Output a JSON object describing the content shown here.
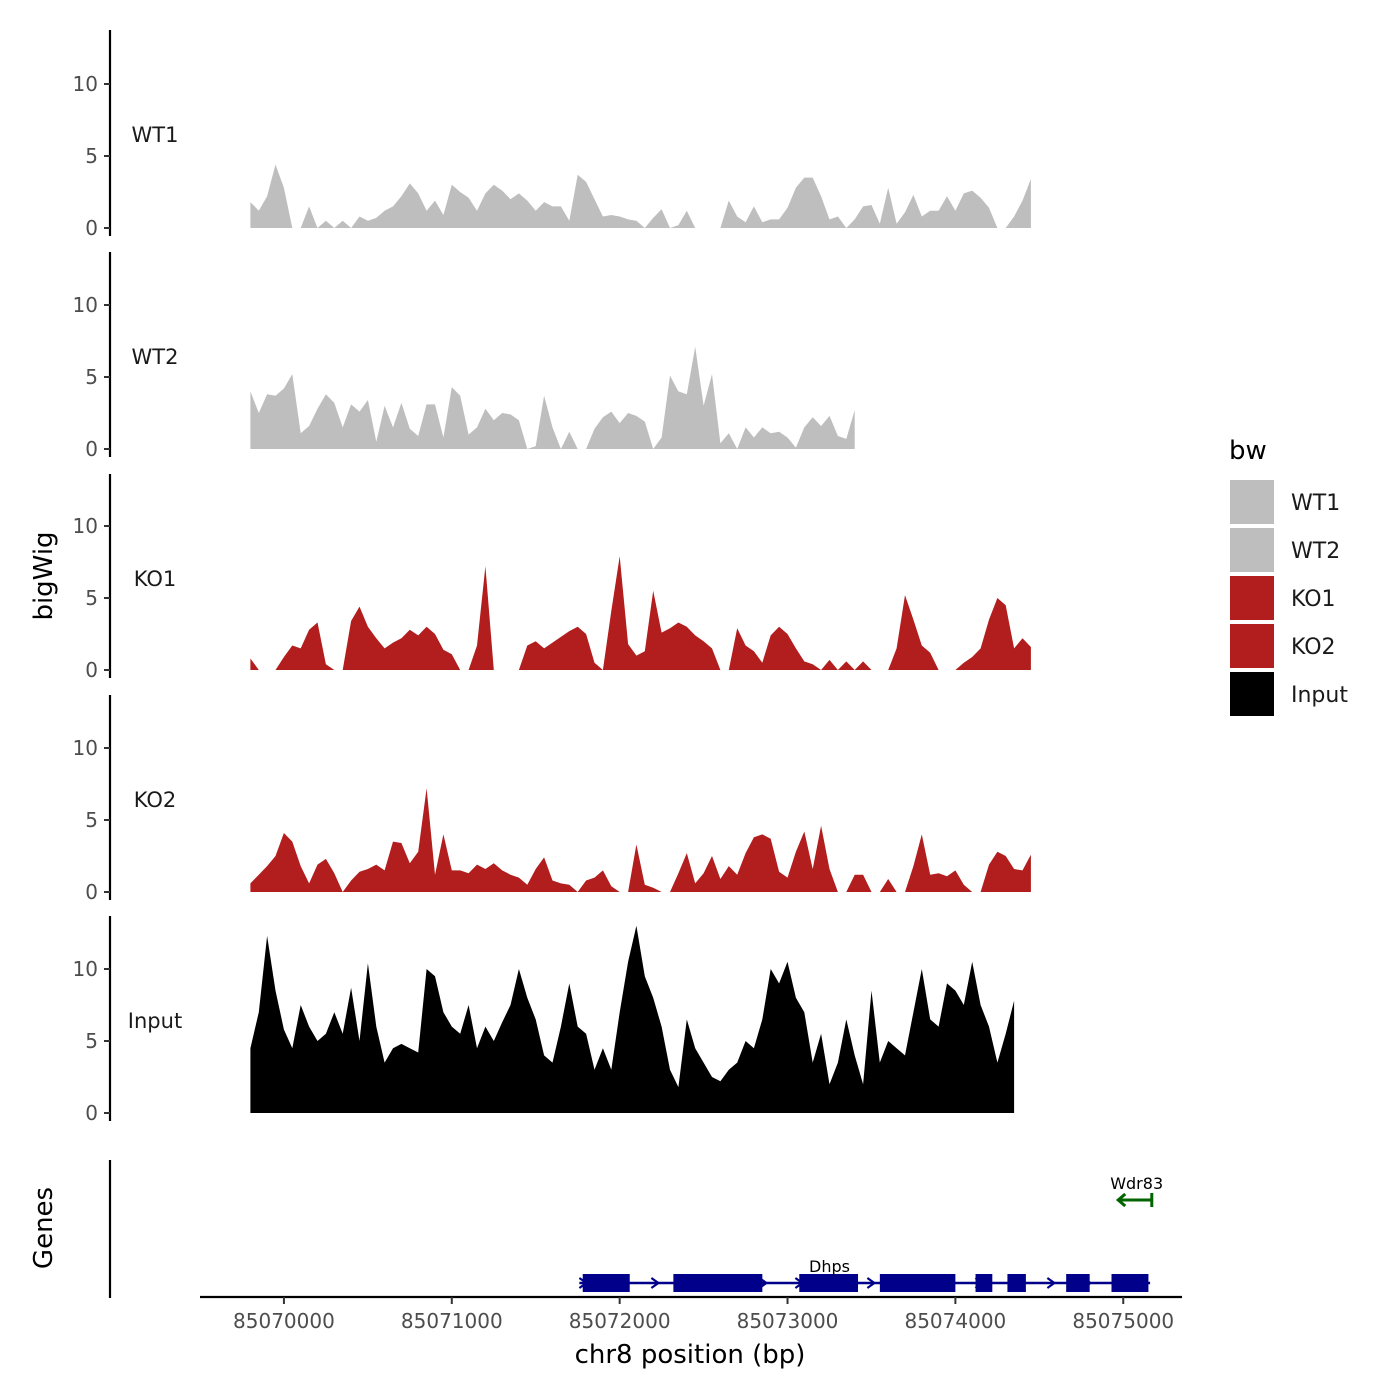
{
  "chart_data": {
    "type": "area",
    "ylabel_tracks": "bigWig",
    "ylabel_genes": "Genes",
    "xlabel": "chr8 position (bp)",
    "xlim": [
      85069500,
      85075350
    ],
    "ylim": [
      0,
      13.5
    ],
    "x_ticks": [
      85070000,
      85071000,
      85072000,
      85073000,
      85074000,
      85075000
    ],
    "x_tick_labels": [
      "85070000",
      "85071000",
      "85072000",
      "85073000",
      "85074000",
      "85075000"
    ],
    "y_ticks": [
      0,
      5,
      10
    ],
    "y_tick_labels": [
      "0",
      "5",
      "10"
    ],
    "legend": {
      "title": "bw",
      "entries": [
        {
          "name": "WT1",
          "color": "#bebebe"
        },
        {
          "name": "WT2",
          "color": "#bebebe"
        },
        {
          "name": "KO1",
          "color": "#b21d1d"
        },
        {
          "name": "KO2",
          "color": "#b21d1d"
        },
        {
          "name": "Input",
          "color": "#000000"
        }
      ]
    },
    "series": [
      {
        "name": "WT1",
        "color": "#bebebe",
        "start": 85069800,
        "step": 50,
        "values": [
          1.8,
          1.2,
          2.2,
          4.4,
          2.8,
          0,
          0,
          1.5,
          0,
          0.5,
          0,
          0.5,
          0,
          0.8,
          0.5,
          0.7,
          1.2,
          1.5,
          2.2,
          3.1,
          2.4,
          1.2,
          1.9,
          0.9,
          3.0,
          2.5,
          2.1,
          1.2,
          2.4,
          3.0,
          2.6,
          2.0,
          2.4,
          1.9,
          1.2,
          1.8,
          1.5,
          1.5,
          0.5,
          3.7,
          3.2,
          2.0,
          0.8,
          0.9,
          0.8,
          0.6,
          0.5,
          0,
          0.7,
          1.3,
          0,
          0.2,
          1.2,
          0,
          0,
          0,
          0,
          1.9,
          0.8,
          0.4,
          1.5,
          0.4,
          0.6,
          0.6,
          1.4,
          2.8,
          3.5,
          3.5,
          2.2,
          0.6,
          0.8,
          0,
          0.6,
          1.5,
          1.6,
          0.3,
          2.8,
          0.3,
          1.1,
          2.3,
          0.8,
          1.2,
          1.2,
          2.2,
          1.2,
          2.4,
          2.6,
          2.1,
          1.4,
          0,
          0,
          0.8,
          1.9,
          3.4
        ]
      },
      {
        "name": "WT2",
        "color": "#bebebe",
        "start": 85069800,
        "step": 50,
        "values": [
          4.0,
          2.5,
          3.8,
          3.7,
          4.2,
          5.2,
          1.1,
          1.6,
          2.8,
          3.8,
          3.2,
          1.5,
          3.1,
          2.6,
          3.4,
          0.5,
          3.0,
          1.5,
          3.2,
          1.4,
          0.9,
          3.1,
          3.1,
          0.8,
          4.3,
          3.7,
          1.0,
          1.5,
          2.8,
          2.0,
          2.5,
          2.4,
          2.0,
          0,
          0.2,
          3.7,
          1.5,
          0,
          1.2,
          0,
          0,
          1.4,
          2.2,
          2.6,
          1.8,
          2.5,
          2.3,
          1.9,
          0,
          0.8,
          5.1,
          4.0,
          3.8,
          7.1,
          3.0,
          5.2,
          0.4,
          1.1,
          0,
          1.5,
          0.8,
          1.5,
          1.1,
          1.2,
          0.8,
          0.1,
          1.5,
          2.2,
          1.6,
          2.3,
          0.9,
          0.7,
          2.7
        ]
      },
      {
        "name": "KO1",
        "color": "#b21d1d",
        "start": 85069800,
        "step": 50,
        "values": [
          0.8,
          0,
          0,
          0,
          0.9,
          1.7,
          1.5,
          2.8,
          3.3,
          0.4,
          0,
          0,
          3.4,
          4.4,
          3.0,
          2.2,
          1.5,
          1.9,
          2.2,
          2.8,
          2.4,
          3.0,
          2.5,
          1.4,
          1.1,
          0,
          0,
          1.7,
          7.2,
          0,
          0,
          0,
          0,
          1.7,
          2.0,
          1.5,
          1.9,
          2.3,
          2.7,
          3.0,
          2.5,
          0.5,
          0,
          4.1,
          7.9,
          1.8,
          1.0,
          1.3,
          5.5,
          2.6,
          2.9,
          3.3,
          3.0,
          2.4,
          2.0,
          1.5,
          0,
          0,
          2.9,
          1.7,
          1.3,
          0.5,
          2.4,
          3.0,
          2.5,
          1.5,
          0.6,
          0.4,
          0,
          0.7,
          0,
          0.6,
          0,
          0.6,
          0,
          0,
          0,
          1.5,
          5.2,
          3.5,
          1.7,
          1.2,
          0,
          0,
          0,
          0.5,
          0.9,
          1.5,
          3.5,
          5.0,
          4.5,
          1.5,
          2.2,
          1.6
        ]
      },
      {
        "name": "KO2",
        "color": "#b21d1d",
        "start": 85069800,
        "step": 50,
        "values": [
          0.6,
          1.2,
          1.8,
          2.5,
          4.1,
          3.5,
          1.8,
          0.6,
          1.9,
          2.3,
          1.3,
          0,
          0.8,
          1.4,
          1.6,
          1.9,
          1.5,
          3.5,
          3.4,
          2.0,
          2.8,
          7.2,
          1.2,
          4.0,
          1.5,
          1.5,
          1.3,
          1.9,
          1.6,
          2.0,
          1.5,
          1.2,
          1.0,
          0.5,
          1.6,
          2.4,
          0.8,
          0.6,
          0.5,
          0,
          0.8,
          1.0,
          1.5,
          0.4,
          0,
          0,
          3.3,
          0.5,
          0.3,
          0,
          0,
          1.3,
          2.7,
          0.6,
          1.3,
          2.5,
          0.9,
          1.8,
          1.2,
          2.7,
          3.8,
          4.0,
          3.7,
          1.4,
          1.0,
          2.8,
          4.2,
          1.6,
          4.6,
          1.6,
          0,
          0,
          1.2,
          1.2,
          0,
          0,
          0.9,
          0,
          0,
          1.8,
          4.0,
          1.2,
          1.3,
          1.1,
          1.5,
          0.5,
          0,
          0,
          1.9,
          2.8,
          2.5,
          1.6,
          1.5,
          2.6
        ]
      },
      {
        "name": "Input",
        "color": "#000000",
        "start": 85069800,
        "step": 50,
        "values": [
          4.5,
          7.0,
          12.3,
          8.5,
          5.8,
          4.5,
          7.5,
          6.0,
          5.0,
          5.5,
          7.0,
          5.5,
          8.7,
          5.0,
          10.4,
          6.0,
          3.5,
          4.5,
          4.8,
          4.5,
          4.2,
          10.0,
          9.5,
          7.0,
          6.0,
          5.5,
          7.5,
          4.5,
          6.0,
          5.0,
          6.3,
          7.5,
          10.0,
          8.0,
          6.5,
          4.0,
          3.5,
          6.0,
          9.0,
          6.0,
          5.5,
          3.0,
          4.5,
          3.0,
          7.0,
          10.5,
          13.0,
          9.5,
          8.0,
          6.0,
          3.0,
          1.8,
          6.5,
          4.5,
          3.5,
          2.5,
          2.2,
          3.0,
          3.5,
          5.0,
          4.5,
          6.5,
          10.0,
          9.0,
          10.5,
          8.0,
          7.0,
          3.5,
          5.5,
          2.0,
          3.5,
          6.5,
          4.0,
          2.0,
          8.5,
          3.5,
          5.0,
          4.5,
          4.0,
          7.0,
          10.0,
          6.5,
          6.0,
          9.0,
          8.5,
          7.5,
          10.5,
          7.5,
          6.0,
          3.5,
          5.5,
          7.8
        ]
      }
    ],
    "genes": [
      {
        "name": "Dhps",
        "strand": "+",
        "color": "#00008b",
        "start": 85071760,
        "end": 85075160,
        "exons": [
          [
            85071780,
            85072060
          ],
          [
            85072320,
            85072850
          ],
          [
            85073070,
            85073420
          ],
          [
            85073550,
            85074000
          ],
          [
            85074120,
            85074220
          ],
          [
            85074310,
            85074420
          ],
          [
            85074660,
            85074800
          ],
          [
            85074930,
            85075150
          ]
        ]
      },
      {
        "name": "Wdr83",
        "strand": "-",
        "color": "#006400",
        "start": 85074970,
        "end": 85075170,
        "exons": []
      }
    ]
  }
}
